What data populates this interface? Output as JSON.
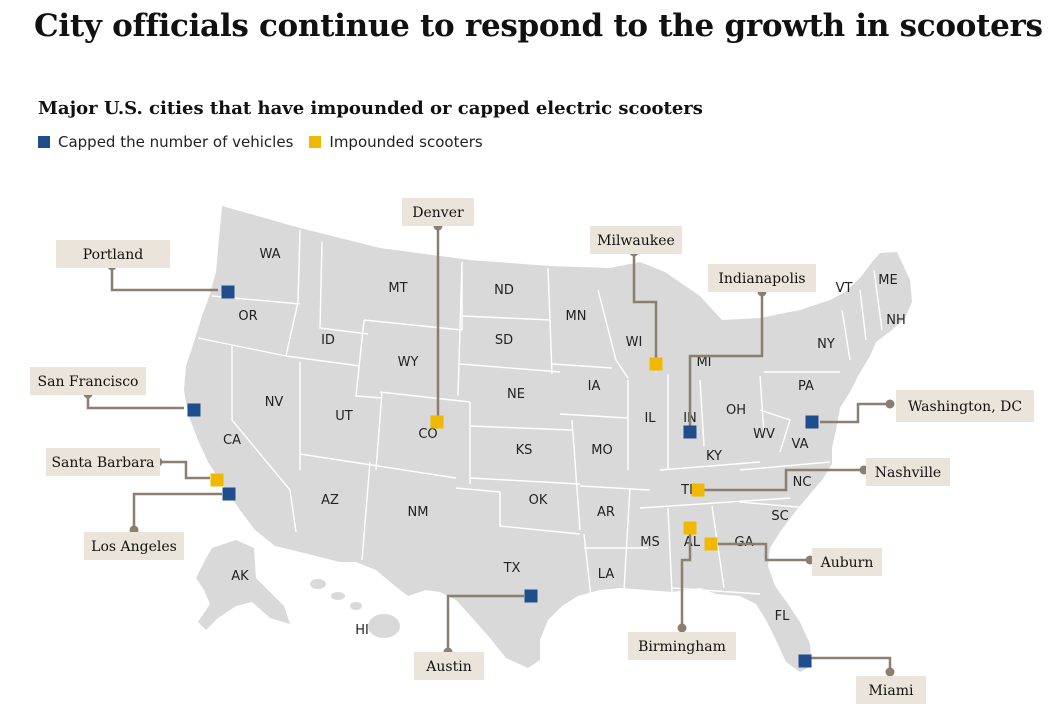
{
  "title": "City officials continue to respond to the growth in scooters",
  "subtitle": "Major U.S. cities that have impounded or capped electric scooters",
  "legend": [
    {
      "key": "capped",
      "label": "Capped the number of vehicles",
      "color": "#1f4e8c"
    },
    {
      "key": "impounded",
      "label": "Impounded scooters",
      "color": "#f0b800"
    }
  ],
  "colors": {
    "land": "#d9d9d9",
    "border": "#ffffff",
    "connector": "#8a7f70",
    "label_box": "#ebe4da"
  },
  "states": [
    "WA",
    "OR",
    "CA",
    "NV",
    "ID",
    "MT",
    "WY",
    "UT",
    "AZ",
    "CO",
    "NM",
    "ND",
    "SD",
    "NE",
    "KS",
    "OK",
    "TX",
    "MN",
    "IA",
    "MO",
    "AR",
    "LA",
    "WI",
    "IL",
    "IN",
    "MI",
    "OH",
    "KY",
    "TN",
    "MS",
    "AL",
    "GA",
    "FL",
    "SC",
    "NC",
    "VA",
    "WV",
    "PA",
    "NY",
    "VT",
    "NH",
    "ME",
    "AK",
    "HI"
  ],
  "cities": [
    {
      "name": "Portland",
      "status": "capped"
    },
    {
      "name": "San Francisco",
      "status": "capped"
    },
    {
      "name": "Santa Barbara",
      "status": "impounded"
    },
    {
      "name": "Los Angeles",
      "status": "capped"
    },
    {
      "name": "Denver",
      "status": "impounded"
    },
    {
      "name": "Milwaukee",
      "status": "impounded"
    },
    {
      "name": "Indianapolis",
      "status": "capped"
    },
    {
      "name": "Washington, DC",
      "status": "capped"
    },
    {
      "name": "Nashville",
      "status": "impounded"
    },
    {
      "name": "Auburn",
      "status": "impounded"
    },
    {
      "name": "Birmingham",
      "status": "impounded"
    },
    {
      "name": "Austin",
      "status": "capped"
    },
    {
      "name": "Miami",
      "status": "capped"
    }
  ]
}
